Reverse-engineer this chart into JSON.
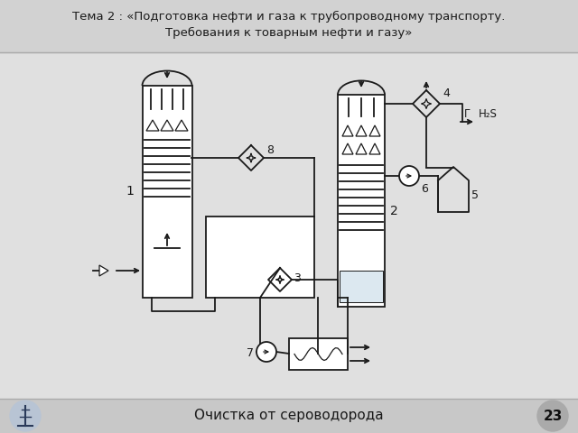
{
  "title_line1": "Тема 2 : «Подготовка нефти и газа к трубопроводному транспорту.",
  "title_line2": "Требования к товарным нефти и газу»",
  "footer_text": "Очистка от сероводорода",
  "slide_number": "23",
  "bg_color": "#e0e0e0",
  "title_bg": "#d2d2d2",
  "diagram_bg": "#efefef",
  "footer_bg": "#c8c8c8",
  "line_color": "#1a1a1a",
  "text_color": "#1a1a1a"
}
